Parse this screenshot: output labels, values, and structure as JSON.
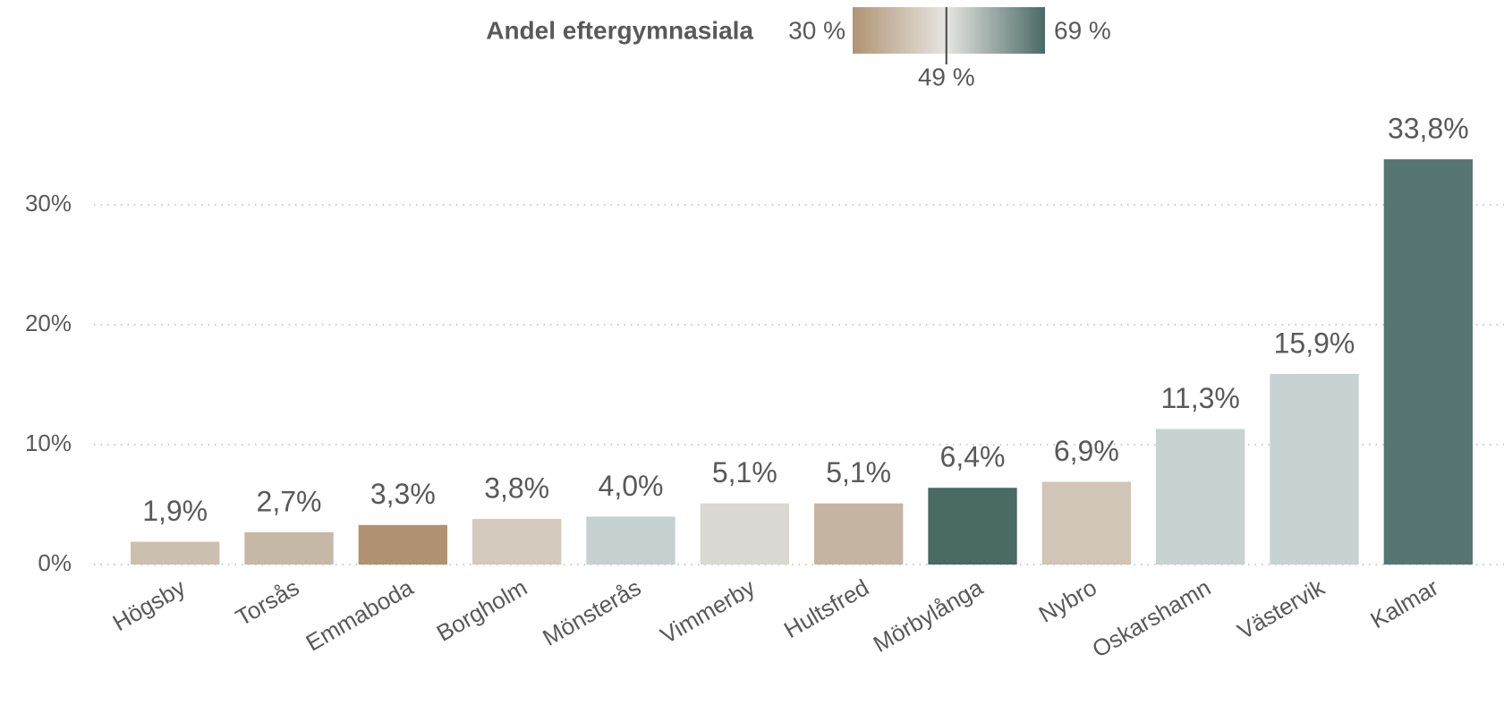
{
  "chart_data": {
    "type": "bar",
    "categories": [
      "Högsby",
      "Torsås",
      "Emmaboda",
      "Borgholm",
      "Mönsterås",
      "Vimmerby",
      "Hultsfred",
      "Mörbylånga",
      "Nybro",
      "Oskarshamn",
      "Västervik",
      "Kalmar"
    ],
    "values": [
      1.9,
      2.7,
      3.3,
      3.8,
      4.0,
      5.1,
      5.1,
      6.4,
      6.9,
      11.3,
      15.9,
      33.8
    ],
    "value_labels": [
      "1,9%",
      "2,7%",
      "3,3%",
      "3,8%",
      "4,0%",
      "5,1%",
      "5,1%",
      "6,4%",
      "6,9%",
      "11,3%",
      "15,9%",
      "33,8%"
    ],
    "colors": [
      "#cbbfb0",
      "#c6b8a7",
      "#b09272",
      "#d3c9bc",
      "#c5d0d0",
      "#d9d8d3",
      "#c6b4a2",
      "#4a6a64",
      "#d0c5b6",
      "#c7d2d1",
      "#c7d3d3",
      "#577673"
    ],
    "ylim": [
      0,
      35
    ],
    "yticks": [
      {
        "value": 0,
        "label": "0%"
      },
      {
        "value": 10,
        "label": "10%"
      },
      {
        "value": 20,
        "label": "20%"
      },
      {
        "value": 30,
        "label": "30%"
      }
    ],
    "grid": true,
    "color_scale": {
      "title": "Andel eftergymnasiala",
      "min": {
        "value": 30,
        "label": "30 %",
        "color": "#b09474"
      },
      "mid": {
        "value": 49,
        "label": "49 %",
        "color": "#e6e5e1"
      },
      "max": {
        "value": 69,
        "label": "69 %",
        "color": "#4a6a66"
      }
    }
  }
}
